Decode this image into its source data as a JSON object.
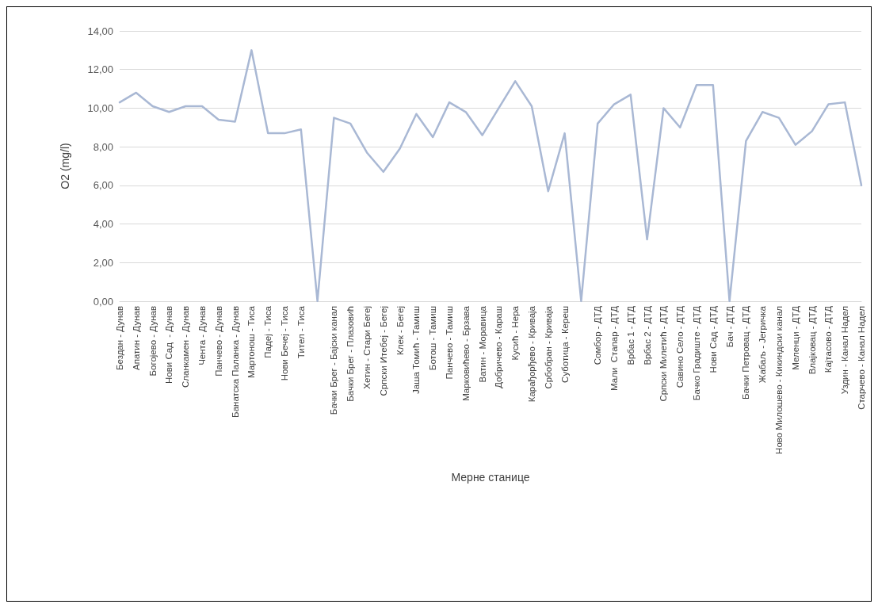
{
  "chart_data": {
    "type": "line",
    "xlabel": "Мерне станице",
    "ylabel": "O2 (mg/l)",
    "categories": [
      "Бездан - Дунав",
      "Апатин - Дунав",
      "Богојево - Дунав",
      "Нови Сад  - Дунав",
      "Сланкамен - Дунав",
      "Чента - Дунав",
      "Панчево - Дунав",
      "Банатска Паланка - Дунав",
      "Мартонош - Тиса",
      "Падеј - Тиса",
      "Нови Бечеј - Тиса",
      "Тител - Тиса",
      null,
      "Бачки Брег - Бајски канал",
      "Бачки Брег - Плазовић",
      "Хетин - Стари Бегеј",
      "Српски Итебеј - Бегеј",
      "Клек - Бегеј",
      "Јаша Томић - Тамиш",
      "Ботош - Тамиш",
      "Панчево - Тамиш",
      "Марковићево - Брзава",
      "Ватин - Моравица",
      "Добричево - Караш",
      "Кусић - Нера",
      "Карађорђево - Криваја",
      "Србобран - Криваја",
      "Суботица - Кереш",
      null,
      "Сомбор - ДТД",
      "Мали  Стапар - ДТД",
      "Врбас 1 - ДТД",
      "Врбас 2 - ДТД",
      "Српски Милетић - ДТД",
      "Савино Село - ДТД",
      "Бачко Градиште - ДТД",
      "Нови Сад - ДТД",
      "Бач - ДТД",
      "Бачки Петровац - ДТД",
      "Жабаљ - Јегричка",
      "Ново Милошево - Кикиндски канал",
      "Меленци - ДТД",
      "Влајковац - ДТД",
      "Кајтасово - ДТД",
      "Уздин - Канал Надел",
      "Старчево - Канал Надел"
    ],
    "series": [
      {
        "color": "#a9b8d4",
        "values": [
          10.3,
          10.8,
          10.1,
          9.8,
          10.1,
          10.1,
          9.4,
          9.3,
          13.0,
          8.7,
          8.7,
          8.9,
          0,
          9.5,
          9.2,
          7.7,
          6.7,
          7.9,
          9.7,
          8.5,
          10.3,
          9.8,
          8.6,
          10.0,
          11.4,
          10.1,
          5.7,
          8.7,
          0,
          9.2,
          10.2,
          10.7,
          3.2,
          10.0,
          9.0,
          11.2,
          11.2,
          0,
          8.3,
          9.8,
          9.5,
          8.1,
          8.8,
          10.2,
          10.3,
          6.0
        ]
      }
    ],
    "ylim": [
      0,
      14
    ],
    "yticks": [
      {
        "value": 0,
        "label": "0,00"
      },
      {
        "value": 2,
        "label": "2,00"
      },
      {
        "value": 4,
        "label": "4,00"
      },
      {
        "value": 6,
        "label": "6,00"
      },
      {
        "value": 8,
        "label": "8,00"
      },
      {
        "value": 10,
        "label": "10,00"
      },
      {
        "value": 12,
        "label": "12,00"
      },
      {
        "value": 14,
        "label": "14,00"
      }
    ],
    "grid": "y",
    "marker": "none",
    "line_style": "solid"
  }
}
